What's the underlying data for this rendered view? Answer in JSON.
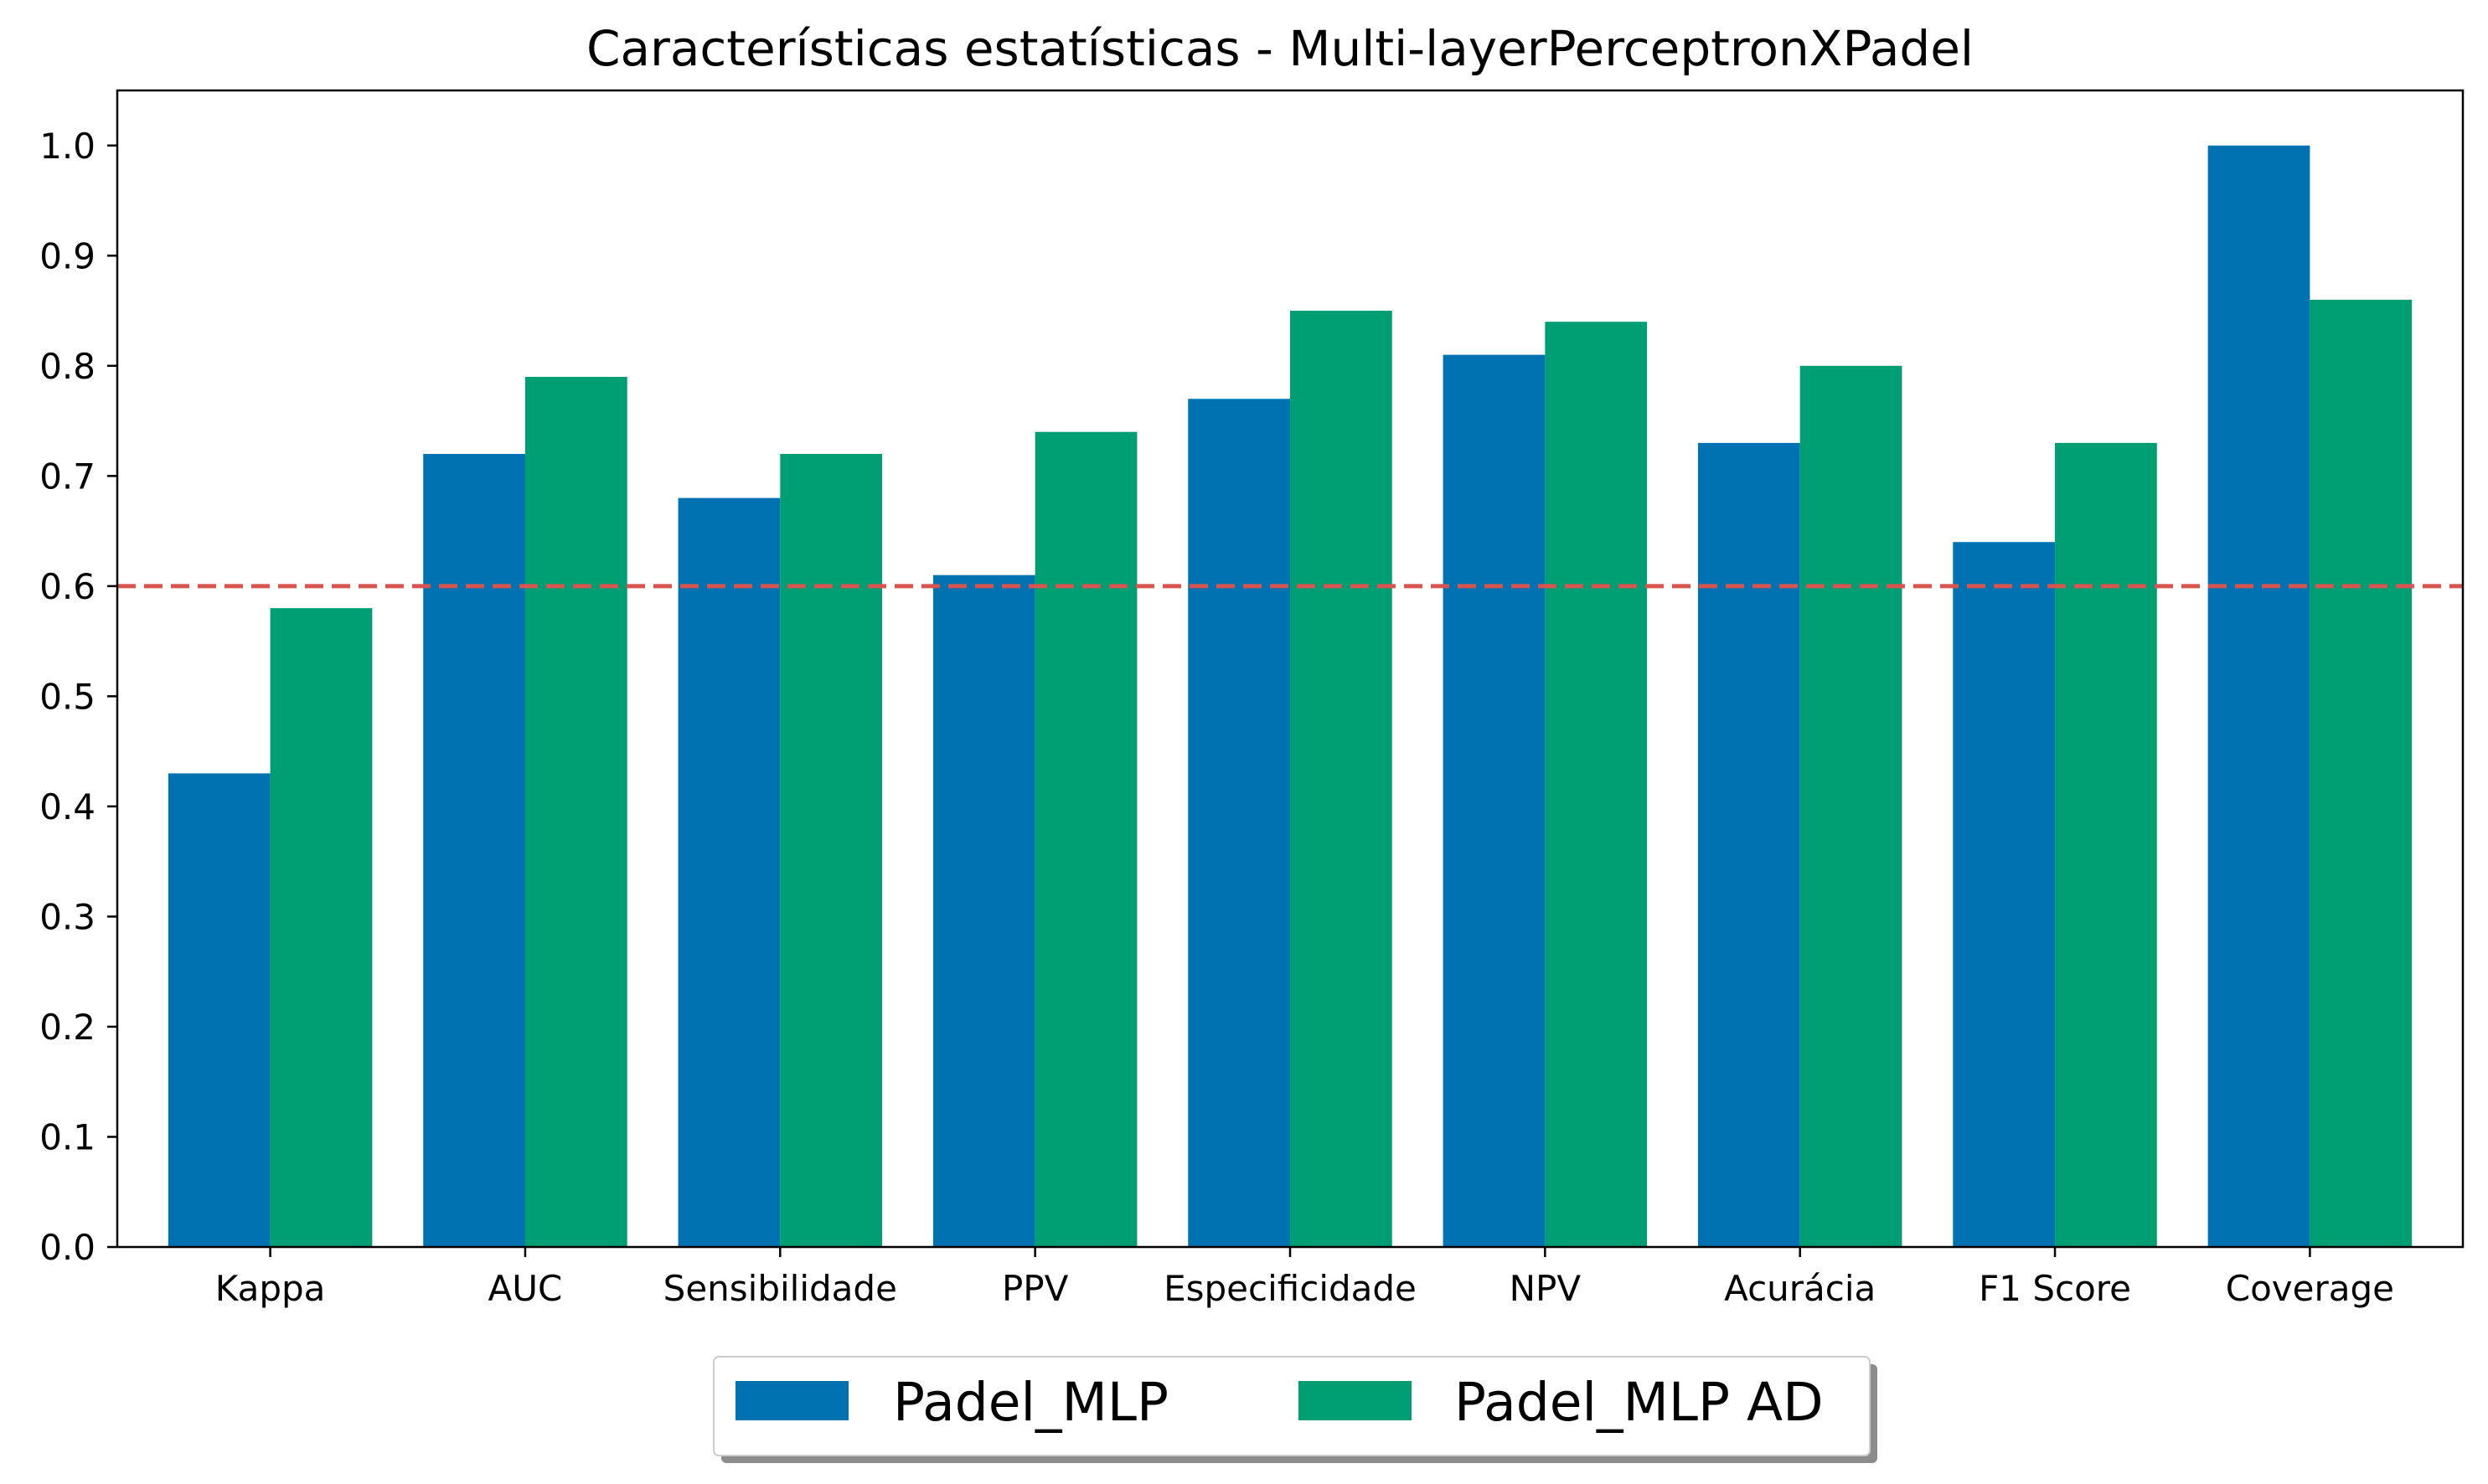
{
  "chart_data": {
    "type": "bar",
    "title": "Características estatísticas - Multi-layerPerceptronXPadel",
    "xlabel": "",
    "ylabel": "",
    "categories": [
      "Kappa",
      "AUC",
      "Sensibilidade",
      "PPV",
      "Especificidade",
      "NPV",
      "Acurácia",
      "F1 Score",
      "Coverage"
    ],
    "series": [
      {
        "name": "Padel_MLP",
        "color": "#0072b2",
        "values": [
          0.43,
          0.72,
          0.68,
          0.61,
          0.77,
          0.81,
          0.73,
          0.64,
          1.0
        ]
      },
      {
        "name": "Padel_MLP AD",
        "color": "#009e73",
        "values": [
          0.58,
          0.79,
          0.72,
          0.74,
          0.85,
          0.84,
          0.8,
          0.73,
          0.86
        ]
      }
    ],
    "ylim": [
      0,
      1.05
    ],
    "yticks": [
      "0.0",
      "0.1",
      "0.2",
      "0.3",
      "0.4",
      "0.5",
      "0.6",
      "0.7",
      "0.8",
      "0.9",
      "1.0"
    ],
    "reference_line": {
      "y": 0.6,
      "color": "#d9534f",
      "style": "dashed"
    },
    "grid": false,
    "legend_position": "bottom-center"
  }
}
